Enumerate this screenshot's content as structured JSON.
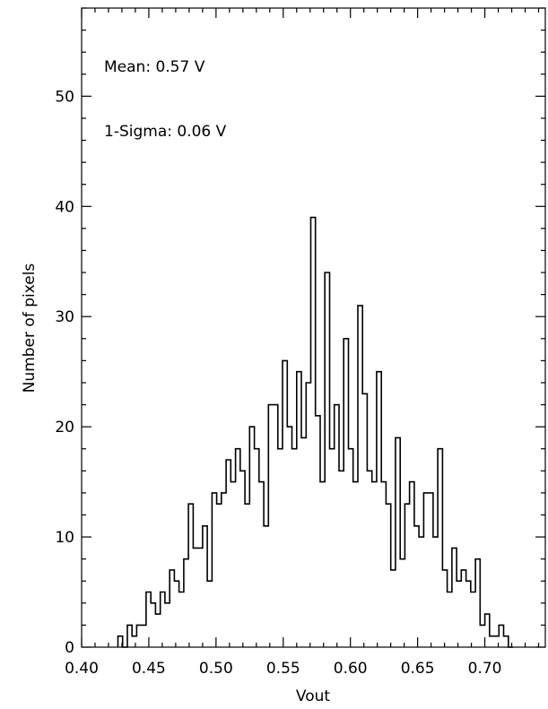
{
  "chart_data": {
    "type": "bar",
    "xlabel": "Vout",
    "ylabel": "Number of pixels",
    "xlim": [
      0.4,
      0.745
    ],
    "ylim": [
      0,
      58
    ],
    "x_ticks": [
      "0.40",
      "0.45",
      "0.50",
      "0.55",
      "0.60",
      "0.65",
      "0.70"
    ],
    "y_ticks": [
      "0",
      "10",
      "20",
      "30",
      "40",
      "50"
    ],
    "annotations": [
      "Mean: 0.57 V",
      "1-Sigma: 0.06 V"
    ],
    "histogram": {
      "bin_start": 0.427,
      "bin_width": 0.0035,
      "counts": [
        1,
        0,
        2,
        1,
        2,
        2,
        5,
        4,
        3,
        5,
        4,
        7,
        6,
        5,
        8,
        13,
        9,
        9,
        11,
        6,
        14,
        13,
        14,
        17,
        15,
        18,
        16,
        13,
        20,
        18,
        15,
        11,
        22,
        22,
        18,
        26,
        20,
        18,
        25,
        19,
        24,
        39,
        21,
        15,
        34,
        18,
        22,
        16,
        28,
        18,
        15,
        31,
        23,
        16,
        15,
        25,
        15,
        13,
        7,
        19,
        8,
        13,
        15,
        11,
        10,
        14,
        14,
        10,
        18,
        7,
        5,
        9,
        6,
        7,
        6,
        5,
        8,
        2,
        3,
        1,
        1,
        2,
        1,
        0
      ]
    }
  }
}
